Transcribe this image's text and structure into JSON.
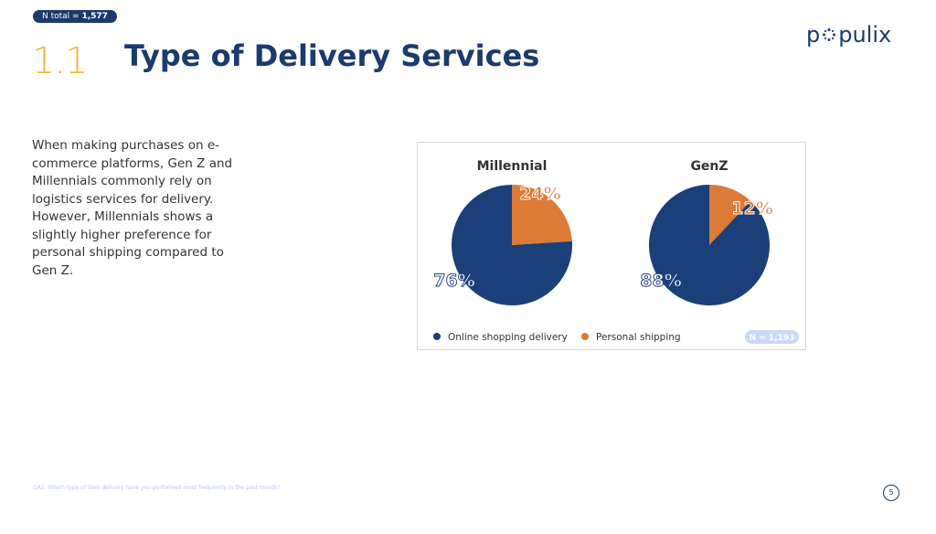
{
  "header": {
    "n_total_label": "N total = ",
    "n_total_value": "1,577",
    "section_number": "1.1",
    "title": "Type of Delivery Services",
    "logo_text_left": "p",
    "logo_text_right": "pulix"
  },
  "description": "When making purchases on e-commerce platforms, Gen Z and Millennials commonly rely on logistics services for delivery. However, Millennials shows a slightly higher preference for personal shipping compared to Gen Z.",
  "footer": {
    "question": "QA1. Which type of item delivery have you performed most frequently in the past month?",
    "page_number": "5"
  },
  "colors": {
    "online": "#1b3f79",
    "personal": "#dc7a37",
    "badge_bg": "#c9d9f7"
  },
  "chart_data": {
    "type": "pie",
    "sample_label": "N = 1,193",
    "legend": [
      "Online shopping delivery",
      "Personal shipping"
    ],
    "legend_position": "bottom",
    "charts": [
      {
        "title": "Millennial",
        "slices": [
          {
            "label": "Online shopping delivery",
            "value": 76,
            "text": "76%"
          },
          {
            "label": "Personal shipping",
            "value": 24,
            "text": "24%"
          }
        ]
      },
      {
        "title": "GenZ",
        "slices": [
          {
            "label": "Online shopping delivery",
            "value": 88,
            "text": "88%"
          },
          {
            "label": "Personal shipping",
            "value": 12,
            "text": "12%"
          }
        ]
      }
    ]
  }
}
